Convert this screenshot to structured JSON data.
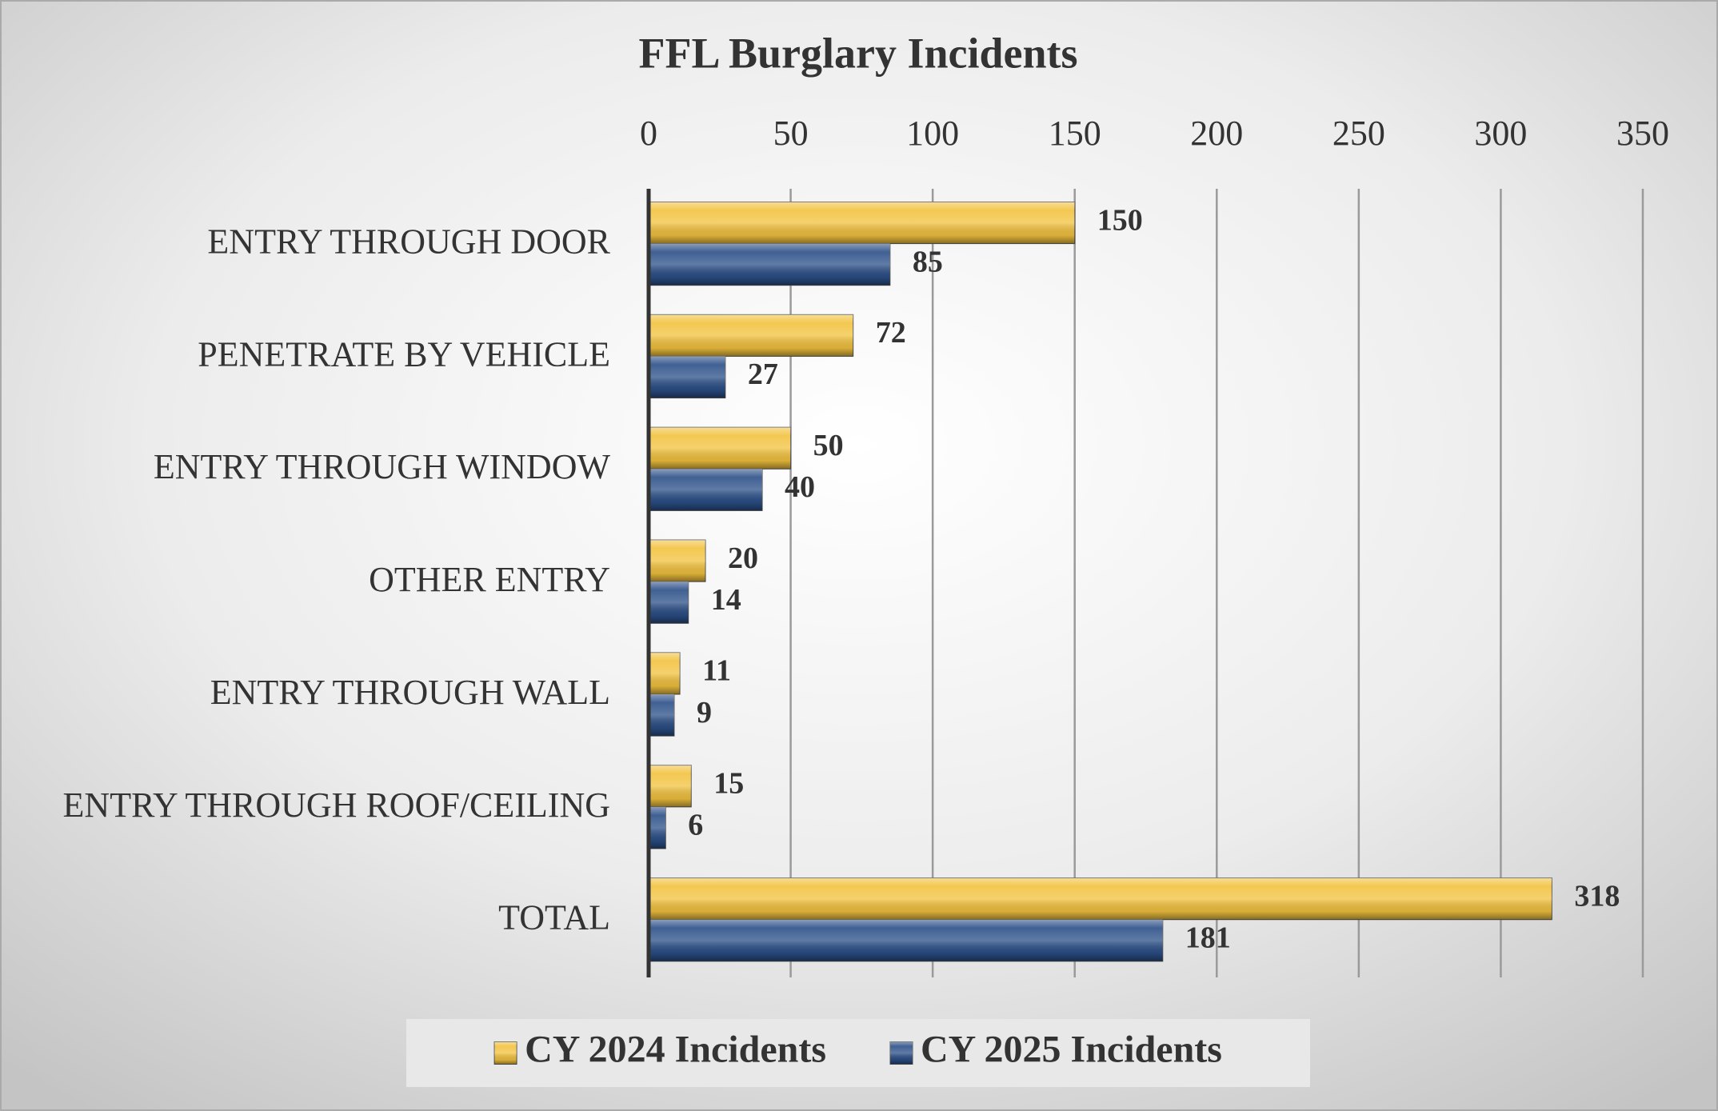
{
  "chart_data": {
    "type": "bar",
    "title": "FFL Burglary Incidents",
    "categories": [
      "ENTRY THROUGH DOOR",
      "PENETRATE BY VEHICLE",
      "ENTRY THROUGH WINDOW",
      "OTHER ENTRY",
      "ENTRY THROUGH WALL",
      "ENTRY THROUGH ROOF/CEILING",
      "TOTAL"
    ],
    "series": [
      {
        "name": "CY 2024 Incidents",
        "color": "#f2c23e",
        "values": [
          150,
          72,
          50,
          20,
          11,
          15,
          318
        ]
      },
      {
        "name": "CY 2025 Incidents",
        "color": "#2b4f88",
        "values": [
          85,
          27,
          40,
          14,
          9,
          6,
          181
        ]
      }
    ],
    "xlim": [
      0,
      350
    ],
    "xticks": [
      0,
      50,
      100,
      150,
      200,
      250,
      300,
      350
    ],
    "grid": true,
    "legend": "bottom"
  }
}
